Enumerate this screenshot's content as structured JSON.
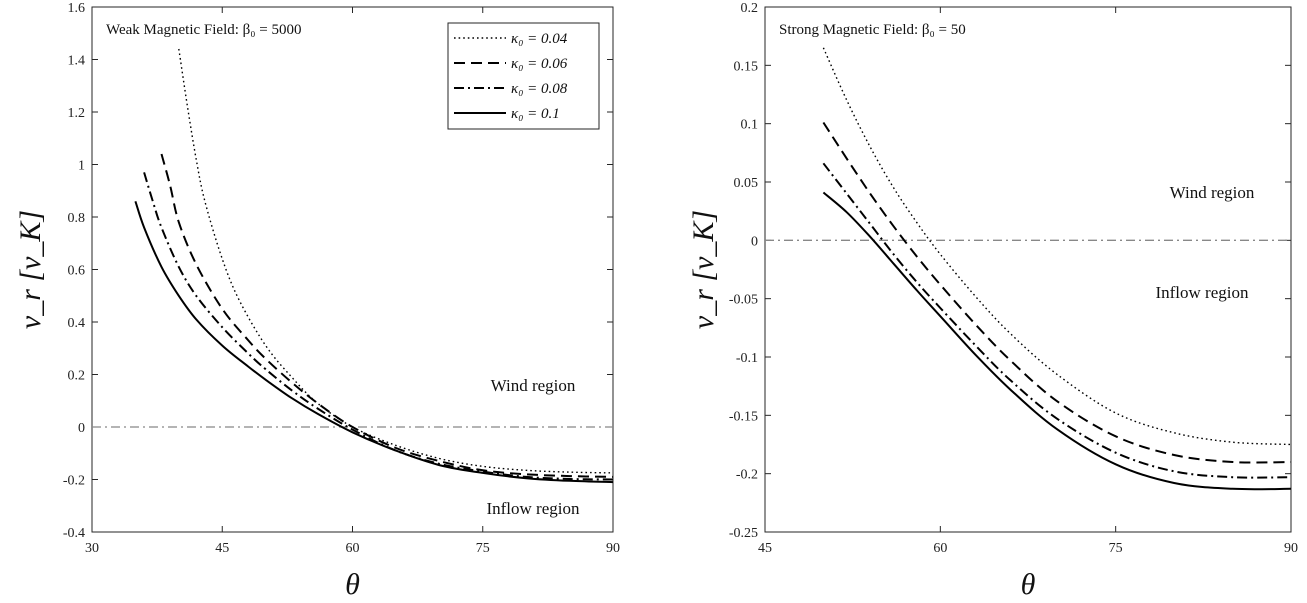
{
  "chart_data": [
    {
      "type": "line",
      "title": "Weak Magnetic Field: β₀ = 5000",
      "xlabel": "θ",
      "ylabel": "v_r [v_K]",
      "xlim": [
        30,
        90
      ],
      "ylim": [
        -0.4,
        1.6
      ],
      "xticks": [
        "30",
        "45",
        "60",
        "75",
        "90"
      ],
      "yticks": [
        "-0.4",
        "-0.2",
        "0",
        "0.2",
        "0.4",
        "0.6",
        "0.8",
        "1",
        "1.2",
        "1.4",
        "1.6"
      ],
      "legend_position": "top-right",
      "annotations": [
        "Wind region",
        "Inflow region"
      ],
      "reference_line": {
        "y": 0,
        "style": "dash-dot",
        "color": "#888888"
      },
      "series": [
        {
          "name": "κ₀ = 0.04",
          "style": "dotted",
          "x": [
            40,
            41,
            42,
            43,
            45,
            47,
            50,
            53,
            56,
            60,
            65,
            70,
            75,
            80,
            85,
            90
          ],
          "y": [
            1.44,
            1.22,
            1.02,
            0.86,
            0.64,
            0.48,
            0.31,
            0.19,
            0.09,
            0.0,
            -0.07,
            -0.12,
            -0.15,
            -0.165,
            -0.172,
            -0.175
          ]
        },
        {
          "name": "κ₀ = 0.06",
          "style": "dashed",
          "x": [
            38,
            39,
            40,
            42,
            45,
            48,
            50,
            53,
            56,
            60,
            65,
            70,
            75,
            80,
            85,
            90
          ],
          "y": [
            1.04,
            0.92,
            0.78,
            0.62,
            0.45,
            0.33,
            0.26,
            0.17,
            0.09,
            0.0,
            -0.08,
            -0.13,
            -0.165,
            -0.18,
            -0.187,
            -0.19
          ]
        },
        {
          "name": "κ₀ = 0.08",
          "style": "dashdot",
          "x": [
            36,
            37,
            38,
            40,
            42,
            45,
            48,
            50,
            53,
            56,
            60,
            65,
            70,
            75,
            80,
            85,
            90
          ],
          "y": [
            0.97,
            0.86,
            0.76,
            0.61,
            0.5,
            0.38,
            0.28,
            0.22,
            0.14,
            0.07,
            -0.01,
            -0.09,
            -0.14,
            -0.17,
            -0.19,
            -0.198,
            -0.2
          ]
        },
        {
          "name": "κ₀ = 0.1",
          "style": "solid",
          "x": [
            35,
            36,
            38,
            40,
            42,
            45,
            48,
            50,
            53,
            56,
            60,
            65,
            70,
            75,
            80,
            85,
            90
          ],
          "y": [
            0.86,
            0.76,
            0.61,
            0.5,
            0.41,
            0.31,
            0.23,
            0.18,
            0.11,
            0.05,
            -0.02,
            -0.09,
            -0.145,
            -0.175,
            -0.195,
            -0.205,
            -0.21
          ]
        }
      ]
    },
    {
      "type": "line",
      "title": "Strong Magnetic Field: β₀ = 50",
      "xlabel": "θ",
      "ylabel": "v_r [v_K]",
      "xlim": [
        45,
        90
      ],
      "ylim": [
        -0.25,
        0.2
      ],
      "xticks": [
        "45",
        "60",
        "75",
        "90"
      ],
      "yticks": [
        "-0.25",
        "-0.2",
        "-0.15",
        "-0.1",
        "-0.05",
        "0",
        "0.05",
        "0.1",
        "0.15",
        "0.2"
      ],
      "annotations": [
        "Wind region",
        "Inflow region"
      ],
      "reference_line": {
        "y": 0,
        "style": "dash-dot",
        "color": "#888888"
      },
      "series": [
        {
          "name": "κ₀ = 0.04",
          "style": "dotted",
          "x": [
            50,
            52,
            54,
            56,
            58,
            60,
            63,
            66,
            70,
            75,
            80,
            85,
            90
          ],
          "y": [
            0.165,
            0.12,
            0.08,
            0.045,
            0.015,
            -0.012,
            -0.048,
            -0.08,
            -0.115,
            -0.148,
            -0.165,
            -0.173,
            -0.175
          ]
        },
        {
          "name": "κ₀ = 0.06",
          "style": "dashed",
          "x": [
            50,
            52,
            54,
            56,
            58,
            60,
            63,
            66,
            70,
            75,
            80,
            85,
            90
          ],
          "y": [
            0.101,
            0.07,
            0.04,
            0.012,
            -0.014,
            -0.038,
            -0.072,
            -0.103,
            -0.138,
            -0.168,
            -0.184,
            -0.19,
            -0.19
          ]
        },
        {
          "name": "κ₀ = 0.08",
          "style": "dashdot",
          "x": [
            50,
            52,
            54,
            56,
            58,
            60,
            63,
            66,
            70,
            75,
            80,
            85,
            90
          ],
          "y": [
            0.066,
            0.04,
            0.014,
            -0.012,
            -0.036,
            -0.058,
            -0.09,
            -0.12,
            -0.153,
            -0.182,
            -0.198,
            -0.203,
            -0.203
          ]
        },
        {
          "name": "κ₀ = 0.1",
          "style": "solid",
          "x": [
            50,
            52,
            54,
            56,
            58,
            60,
            63,
            66,
            70,
            75,
            80,
            85,
            90
          ],
          "y": [
            0.041,
            0.024,
            0.003,
            -0.02,
            -0.043,
            -0.065,
            -0.098,
            -0.128,
            -0.162,
            -0.192,
            -0.208,
            -0.213,
            -0.213
          ]
        }
      ]
    }
  ]
}
